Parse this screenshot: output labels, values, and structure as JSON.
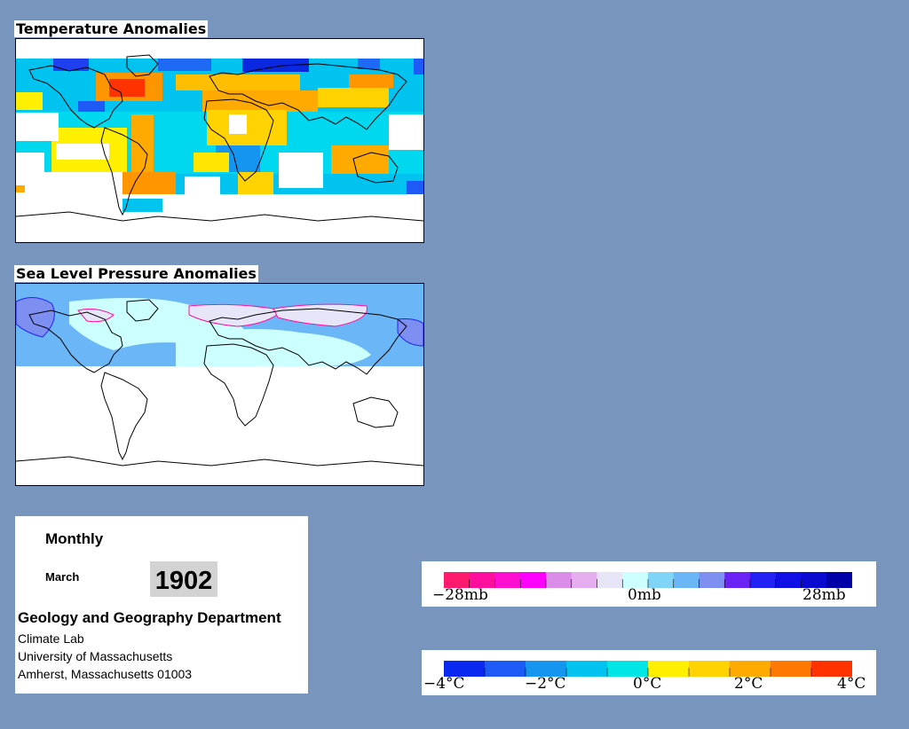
{
  "panels": {
    "temperature": {
      "title": "Temperature Anomalies"
    },
    "pressure": {
      "title": "Sea Level Pressure Anomalies"
    }
  },
  "info": {
    "frequency": "Monthly",
    "month": "March",
    "year": "1902",
    "department": "Geology and Geography Department",
    "lab": "Climate Lab",
    "university": "University of Massachusetts",
    "address": "Amherst, Massachusetts 01003"
  },
  "legends": {
    "pressure": {
      "colors": [
        "#ff1a6e",
        "#ff0f9e",
        "#ff0fd2",
        "#ff00ff",
        "#d98ce8",
        "#e6aef0",
        "#e6e6f8",
        "#ccffff",
        "#80d4f5",
        "#6ab6f7",
        "#7e8ff2",
        "#6a22f5",
        "#2222f5",
        "#1010e6",
        "#0a0ad0",
        "#0000a8"
      ],
      "labels": [
        "−28mb",
        "0mb",
        "28mb"
      ]
    },
    "temperature": {
      "colors": [
        "#0a28f0",
        "#1e5af5",
        "#1496f0",
        "#00c3f0",
        "#00e6e6",
        "#fff000",
        "#ffd200",
        "#ffaa00",
        "#ff7800",
        "#ff3200"
      ],
      "labels": [
        "−4°C",
        "−2°C",
        "0°C",
        "2°C",
        "4°C"
      ]
    }
  }
}
